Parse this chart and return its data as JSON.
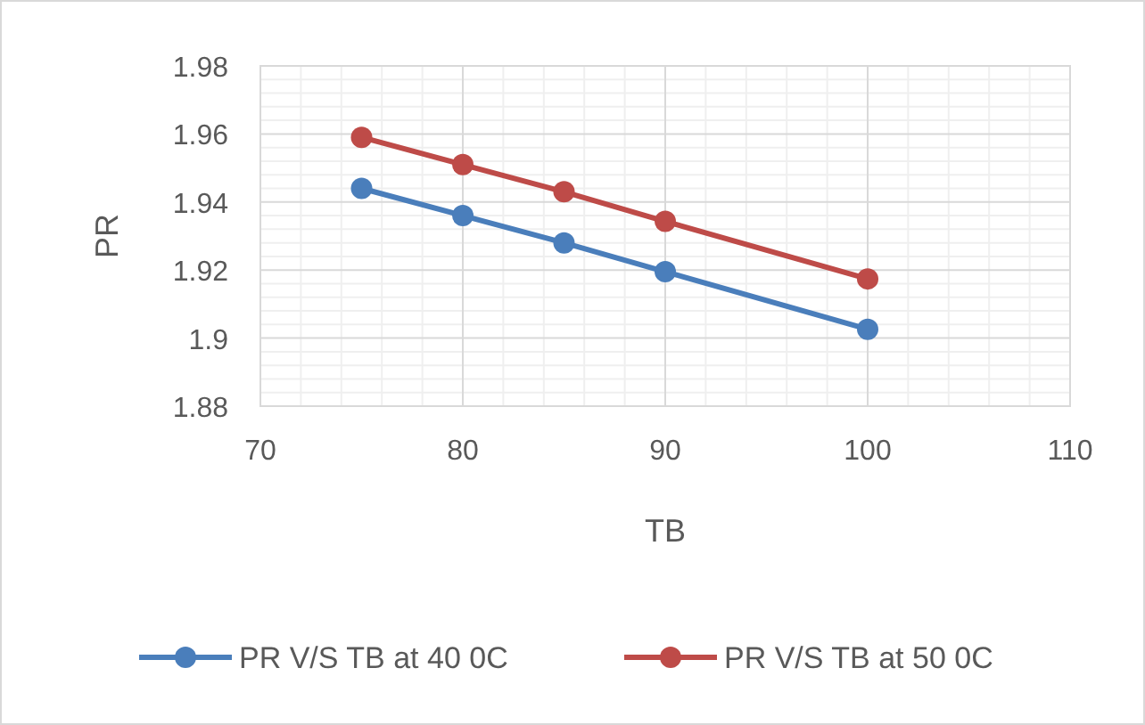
{
  "chart_data": {
    "type": "line",
    "xlabel": "TB",
    "ylabel": "PR",
    "x": [
      75,
      80,
      85,
      90,
      100
    ],
    "series": [
      {
        "name": "PR V/S TB at 40 0C",
        "color": "#4a7ebb",
        "values": [
          1.944,
          1.936,
          1.928,
          1.9195,
          1.9026
        ]
      },
      {
        "name": "PR V/S TB at 50 0C",
        "color": "#be4b48",
        "values": [
          1.959,
          1.951,
          1.943,
          1.9343,
          1.9174
        ]
      }
    ],
    "xlim": [
      70,
      110
    ],
    "xticks": [
      70,
      80,
      90,
      100,
      110
    ],
    "ylim": [
      1.88,
      1.98
    ],
    "yticks": [
      1.88,
      1.9,
      1.92,
      1.94,
      1.96,
      1.98
    ],
    "grid": true,
    "legend": "bottom",
    "marker": "circle",
    "line_style": "solid"
  }
}
